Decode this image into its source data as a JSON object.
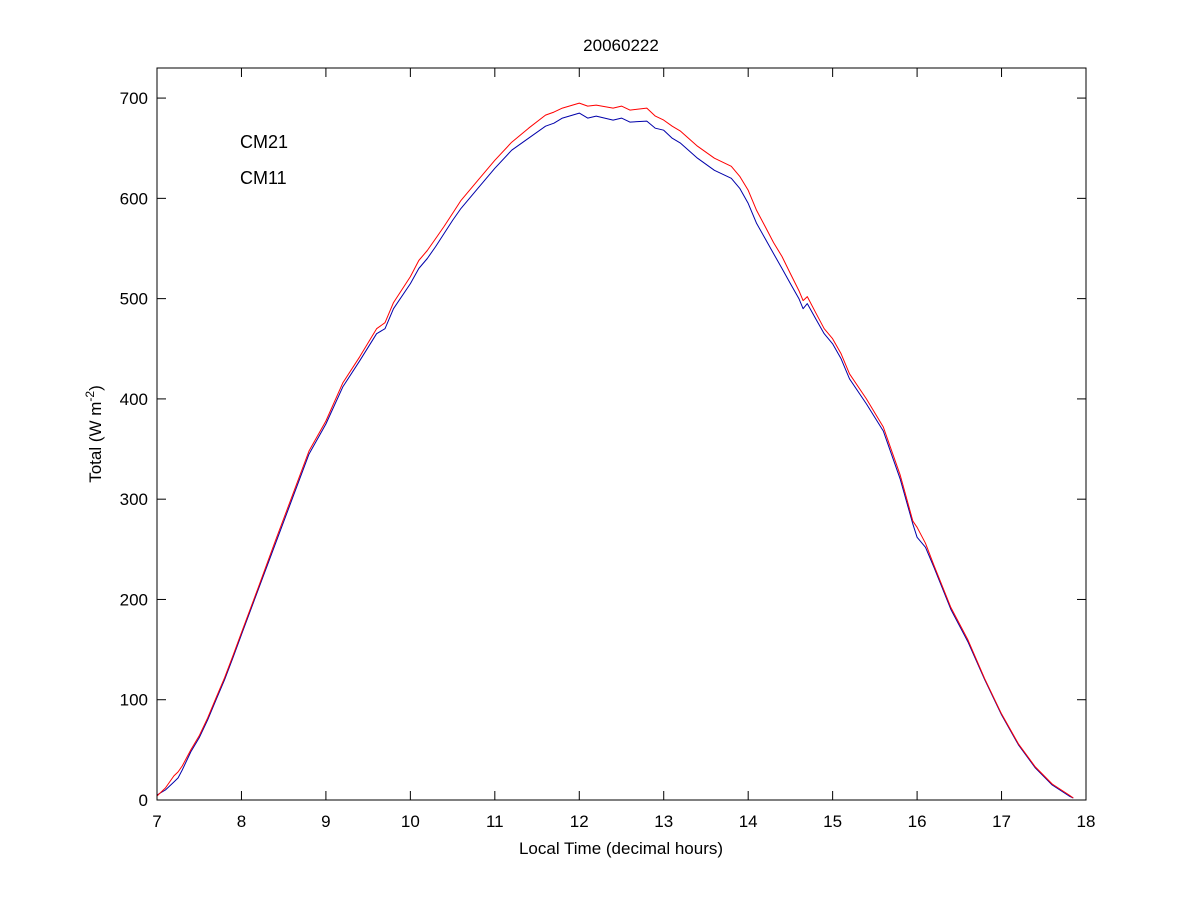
{
  "chart_data": {
    "type": "line",
    "title": "20060222",
    "xlabel": "Local Time (decimal hours)",
    "ylabel": "Total (W m",
    "ylabel_exp": "-2",
    "ylabel_end": ")",
    "xlim": [
      7,
      18
    ],
    "ylim": [
      0,
      730
    ],
    "xticks": [
      7,
      8,
      9,
      10,
      11,
      12,
      13,
      14,
      15,
      16,
      17,
      18
    ],
    "yticks": [
      0,
      100,
      200,
      300,
      400,
      500,
      600,
      700
    ],
    "xtick_labels": [
      "7",
      "8",
      "9",
      "10",
      "11",
      "12",
      "13",
      "14",
      "15",
      "16",
      "17",
      "18"
    ],
    "ytick_labels": [
      "0",
      "100",
      "200",
      "300",
      "400",
      "500",
      "600",
      "700"
    ],
    "grid": false,
    "legend_position": "top-left",
    "series": [
      {
        "name": "CM21",
        "color": "#0000aa",
        "x": [
          7.0,
          7.1,
          7.2,
          7.25,
          7.3,
          7.4,
          7.5,
          7.6,
          7.7,
          7.8,
          7.9,
          8.0,
          8.2,
          8.4,
          8.6,
          8.8,
          9.0,
          9.2,
          9.4,
          9.6,
          9.7,
          9.8,
          10.0,
          10.1,
          10.2,
          10.3,
          10.4,
          10.5,
          10.6,
          10.8,
          11.0,
          11.2,
          11.4,
          11.6,
          11.7,
          11.8,
          12.0,
          12.1,
          12.2,
          12.4,
          12.5,
          12.6,
          12.8,
          12.9,
          13.0,
          13.1,
          13.2,
          13.4,
          13.6,
          13.8,
          13.9,
          14.0,
          14.1,
          14.2,
          14.3,
          14.4,
          14.5,
          14.6,
          14.65,
          14.7,
          14.8,
          14.9,
          15.0,
          15.1,
          15.2,
          15.4,
          15.6,
          15.8,
          15.95,
          16.0,
          16.1,
          16.2,
          16.4,
          16.6,
          16.8,
          17.0,
          17.2,
          17.4,
          17.6,
          17.8,
          17.85
        ],
        "y": [
          5,
          10,
          18,
          22,
          30,
          48,
          62,
          80,
          100,
          120,
          142,
          165,
          210,
          255,
          300,
          345,
          375,
          412,
          438,
          465,
          470,
          490,
          515,
          530,
          540,
          552,
          565,
          578,
          590,
          610,
          630,
          648,
          660,
          672,
          675,
          680,
          685,
          680,
          682,
          678,
          680,
          676,
          677,
          670,
          668,
          660,
          655,
          640,
          628,
          620,
          610,
          595,
          575,
          560,
          545,
          530,
          515,
          500,
          490,
          495,
          480,
          465,
          455,
          440,
          420,
          395,
          368,
          320,
          275,
          262,
          252,
          232,
          190,
          158,
          120,
          85,
          55,
          32,
          15,
          4,
          2
        ]
      },
      {
        "name": "CM11",
        "color": "#ff0000",
        "x": [
          7.0,
          7.1,
          7.2,
          7.25,
          7.3,
          7.4,
          7.5,
          7.6,
          7.7,
          7.8,
          7.9,
          8.0,
          8.2,
          8.4,
          8.6,
          8.8,
          9.0,
          9.2,
          9.4,
          9.6,
          9.7,
          9.8,
          10.0,
          10.1,
          10.2,
          10.3,
          10.4,
          10.5,
          10.6,
          10.8,
          11.0,
          11.2,
          11.4,
          11.6,
          11.7,
          11.8,
          12.0,
          12.1,
          12.2,
          12.4,
          12.5,
          12.6,
          12.8,
          12.9,
          13.0,
          13.1,
          13.2,
          13.4,
          13.6,
          13.8,
          13.9,
          14.0,
          14.1,
          14.2,
          14.3,
          14.4,
          14.5,
          14.6,
          14.65,
          14.7,
          14.8,
          14.9,
          15.0,
          15.1,
          15.2,
          15.4,
          15.6,
          15.8,
          15.95,
          16.0,
          16.1,
          16.2,
          16.4,
          16.6,
          16.8,
          17.0,
          17.2,
          17.4,
          17.6,
          17.8,
          17.85
        ],
        "y": [
          4,
          12,
          24,
          28,
          34,
          50,
          64,
          82,
          102,
          122,
          144,
          167,
          212,
          258,
          303,
          348,
          378,
          416,
          442,
          470,
          476,
          496,
          522,
          538,
          548,
          560,
          572,
          585,
          598,
          618,
          638,
          656,
          670,
          683,
          686,
          690,
          695,
          692,
          693,
          690,
          692,
          688,
          690,
          682,
          678,
          672,
          667,
          652,
          640,
          632,
          622,
          608,
          588,
          572,
          556,
          542,
          525,
          508,
          498,
          502,
          486,
          470,
          460,
          445,
          425,
          400,
          372,
          324,
          278,
          272,
          256,
          234,
          192,
          160,
          121,
          86,
          56,
          33,
          16,
          5,
          2
        ]
      }
    ]
  }
}
